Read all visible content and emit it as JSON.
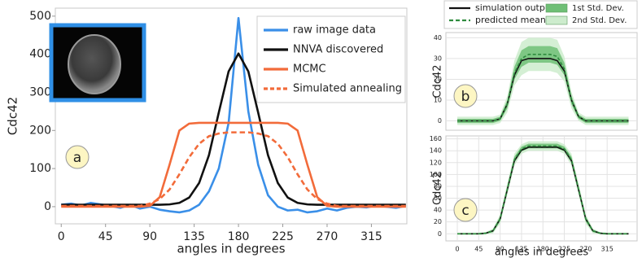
{
  "chart_data": [
    {
      "type": "line",
      "annotation": "a",
      "xlabel": "angles in degrees",
      "ylabel": "Cdc42",
      "x": [
        0,
        10,
        20,
        30,
        40,
        50,
        60,
        70,
        80,
        90,
        100,
        110,
        120,
        130,
        140,
        150,
        160,
        170,
        180,
        190,
        200,
        210,
        220,
        230,
        240,
        250,
        260,
        270,
        280,
        290,
        300,
        310,
        320,
        330,
        340,
        350
      ],
      "series": [
        {
          "name": "raw image data",
          "color": "#3a8fe8",
          "values": [
            5,
            8,
            3,
            10,
            6,
            2,
            -3,
            5,
            -5,
            0,
            -8,
            -12,
            -15,
            -10,
            5,
            40,
            100,
            220,
            495,
            250,
            110,
            30,
            0,
            -10,
            -8,
            -15,
            -12,
            -5,
            -10,
            -3,
            0,
            -2,
            3,
            0,
            -3,
            2
          ]
        },
        {
          "name": "NNVA discovered",
          "color": "#111111",
          "values": [
            5,
            5,
            5,
            5,
            5,
            5,
            5,
            5,
            5,
            5,
            5,
            6,
            10,
            24,
            62,
            135,
            247,
            355,
            402,
            355,
            247,
            135,
            62,
            24,
            10,
            6,
            5,
            5,
            5,
            5,
            5,
            5,
            5,
            5,
            5,
            5
          ]
        },
        {
          "name": "MCMC",
          "color": "#f26b3a",
          "values": [
            0,
            0,
            0,
            0,
            0,
            0,
            0,
            0,
            0,
            2,
            25,
            110,
            200,
            218,
            220,
            220,
            220,
            220,
            220,
            220,
            220,
            220,
            220,
            218,
            200,
            110,
            25,
            2,
            0,
            0,
            0,
            0,
            0,
            0,
            0,
            0
          ]
        },
        {
          "name": "Simulated annealing",
          "color": "#f26b3a",
          "dashed": true,
          "values": [
            2,
            2,
            2,
            2,
            2,
            2,
            2,
            2,
            2,
            8,
            20,
            45,
            85,
            130,
            165,
            185,
            192,
            195,
            195,
            195,
            192,
            185,
            165,
            130,
            85,
            45,
            20,
            8,
            2,
            2,
            2,
            2,
            2,
            2,
            2,
            2
          ]
        }
      ],
      "xlim": [
        -6,
        351
      ],
      "ylim": [
        -45,
        521
      ],
      "xticks": [
        0,
        45,
        90,
        135,
        180,
        225,
        270,
        315
      ],
      "yticks": [
        0,
        100,
        200,
        300,
        400,
        500
      ],
      "grid": false,
      "legend": "upper-right"
    },
    {
      "type": "line",
      "annotation": "b",
      "ylabel": "Cdc42",
      "x": [
        0,
        15,
        30,
        45,
        60,
        75,
        90,
        105,
        120,
        135,
        150,
        165,
        180,
        195,
        210,
        225,
        240,
        255,
        270,
        285,
        300,
        315,
        330,
        345,
        360
      ],
      "series": [
        {
          "name": "simulation output",
          "color": "#111111",
          "values": [
            0,
            0,
            0,
            0,
            0,
            0,
            1,
            8,
            22,
            29,
            30,
            30,
            30,
            30,
            29,
            24,
            10,
            2,
            0,
            0,
            0,
            0,
            0,
            0,
            0
          ]
        },
        {
          "name": "predicted mean",
          "color": "#2e8b3e",
          "dashed": true,
          "values": [
            0,
            0,
            0,
            0,
            0,
            0,
            1,
            8,
            23,
            30,
            32,
            32,
            32,
            32,
            31,
            25,
            10,
            2,
            0,
            0,
            0,
            0,
            0,
            0,
            0
          ]
        }
      ],
      "bands": [
        {
          "name": "1st Std. Dev.",
          "color": "#6fbf76",
          "lower": [
            -1,
            -1,
            -1,
            -1,
            -1,
            -1,
            0,
            6,
            20,
            26,
            28,
            28,
            28,
            28,
            27,
            22,
            8,
            1,
            -1,
            -1,
            -1,
            -1,
            -1,
            -1,
            -1
          ],
          "upper": [
            1,
            1,
            1,
            1,
            1,
            1,
            2,
            10,
            26,
            34,
            36,
            36,
            36,
            36,
            35,
            28,
            12,
            3,
            1,
            1,
            1,
            1,
            1,
            1,
            1
          ]
        },
        {
          "name": "2nd Std. Dev.",
          "color": "#cdeccd",
          "lower": [
            -2,
            -2,
            -2,
            -2,
            -2,
            -2,
            -1,
            4,
            17,
            22,
            24,
            24,
            24,
            24,
            23,
            19,
            6,
            0,
            -2,
            -2,
            -2,
            -2,
            -2,
            -2,
            -2
          ],
          "upper": [
            2,
            2,
            2,
            2,
            2,
            2,
            3,
            12,
            29,
            38,
            40,
            40,
            40,
            40,
            39,
            31,
            14,
            4,
            2,
            2,
            2,
            2,
            2,
            2,
            2
          ]
        }
      ],
      "xlim": [
        -24,
        378
      ],
      "ylim": [
        -4.5,
        42.5
      ],
      "yticks": [
        0,
        10,
        20,
        30,
        40
      ],
      "grid": true,
      "legend": "top"
    },
    {
      "type": "line",
      "annotation": "c",
      "xlabel": "angles in degrees",
      "ylabel": "Cdc42",
      "x": [
        0,
        15,
        30,
        45,
        60,
        75,
        90,
        105,
        120,
        135,
        150,
        165,
        180,
        195,
        210,
        225,
        240,
        255,
        270,
        285,
        300,
        315,
        330,
        345,
        360
      ],
      "series": [
        {
          "color": "#111111",
          "values": [
            0,
            0,
            0,
            0,
            1,
            5,
            25,
            74,
            123,
            141,
            146,
            146,
            146,
            146,
            146,
            141,
            123,
            74,
            25,
            5,
            1,
            0,
            0,
            0,
            0
          ]
        },
        {
          "color": "#2e8b3e",
          "dashed": true,
          "values": [
            0,
            0,
            0,
            0,
            1,
            5,
            25,
            75,
            125,
            143,
            148,
            148,
            148,
            148,
            148,
            143,
            125,
            75,
            25,
            5,
            1,
            0,
            0,
            0,
            0
          ]
        }
      ],
      "bands": [
        {
          "color": "#6fbf76",
          "lower": [
            -1,
            -1,
            -1,
            -1,
            0,
            3,
            21,
            70,
            120,
            139,
            144,
            144,
            144,
            144,
            144,
            139,
            120,
            70,
            21,
            3,
            0,
            -1,
            -1,
            -1,
            -1
          ],
          "upper": [
            1,
            1,
            1,
            1,
            2,
            7,
            29,
            80,
            130,
            147,
            152,
            152,
            152,
            152,
            152,
            147,
            130,
            80,
            29,
            7,
            2,
            1,
            1,
            1,
            1
          ]
        },
        {
          "color": "#cdeccd",
          "lower": [
            -2,
            -2,
            -2,
            -2,
            -1,
            1,
            17,
            65,
            115,
            135,
            140,
            140,
            140,
            140,
            140,
            135,
            115,
            65,
            17,
            1,
            -1,
            -2,
            -2,
            -2,
            -2
          ],
          "upper": [
            2,
            2,
            2,
            2,
            3,
            9,
            33,
            85,
            135,
            151,
            156,
            156,
            156,
            156,
            156,
            151,
            135,
            85,
            33,
            9,
            3,
            2,
            2,
            2,
            2
          ]
        }
      ],
      "xlim": [
        -24,
        378
      ],
      "ylim": [
        -12,
        165
      ],
      "xticks": [
        0,
        45,
        90,
        135,
        180,
        225,
        270,
        315
      ],
      "yticks": [
        0,
        20,
        40,
        60,
        80,
        100,
        120,
        140,
        160
      ],
      "grid": true
    }
  ]
}
